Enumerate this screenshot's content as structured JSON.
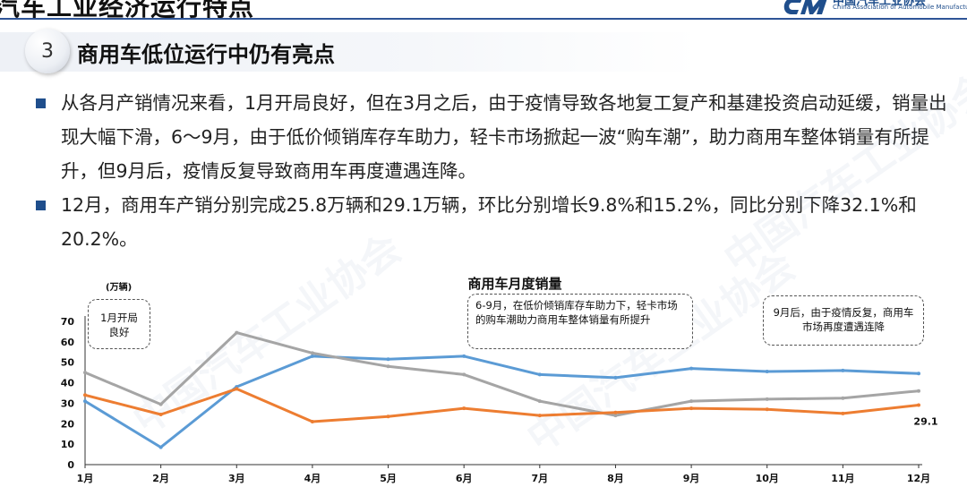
{
  "header": {
    "title": "汽车工业经济运行特点",
    "logo_text_cn": "中国汽车工业协会",
    "logo_text_en": "China Association of Automobile Manufacturers"
  },
  "section": {
    "number": "3",
    "title": "商用车低位运行中仍有亮点"
  },
  "bullets": [
    "从各月产销情况来看，1月开局良好，但在3月之后，由于疫情导致各地复工复产和基建投资启动延缓，销量出现大幅下滑，6～9月，由于低价倾销库存车助力，轻卡市场掀起一波“购车潮”，助力商用车整体销量有所提升，但9月后，疫情反复导致商用车再度遭遇连降。",
    "12月，商用车产销分别完成25.8万辆和29.1万辆，环比分别增长9.8%和15.2%，同比分别下降32.1%和20.2%。"
  ],
  "watermark_text": "中国汽车工业协会",
  "chart_data": {
    "type": "line",
    "title": "商用车月度销量",
    "ylabel": "(万辆)",
    "categories": [
      "1月",
      "2月",
      "3月",
      "4月",
      "5月",
      "6月",
      "7月",
      "8月",
      "9月",
      "10月",
      "11月",
      "12月"
    ],
    "ylim": [
      0,
      70
    ],
    "yticks": [
      0,
      10,
      20,
      30,
      40,
      50,
      60,
      70
    ],
    "grid": false,
    "series": [
      {
        "color": "#5b9bd5",
        "values": [
          31,
          8.5,
          38,
          53,
          51.5,
          53,
          44,
          42.5,
          47,
          45.5,
          46,
          44.5
        ]
      },
      {
        "color": "#a5a5a5",
        "values": [
          45,
          29.5,
          64.5,
          54.5,
          48,
          44,
          31,
          24,
          31,
          32,
          32.5,
          36
        ]
      },
      {
        "color": "#ed7d31",
        "values": [
          34,
          24.5,
          37,
          21,
          23.5,
          27.5,
          24,
          25.5,
          27.5,
          27,
          25,
          29.1
        ]
      }
    ],
    "data_labels": [
      {
        "series": 2,
        "index": 11,
        "text": "29.1"
      }
    ],
    "annotations": [
      {
        "id": "jan",
        "text": "1月开局良好"
      },
      {
        "id": "jun_sep",
        "text": "6-9月，在低价倾销库存车助力下，轻卡市场的购车潮助力商用车整体销量有所提升"
      },
      {
        "id": "after_sep",
        "text": "9月后，由于疫情反复，商用车市场再度遭遇连降"
      }
    ]
  }
}
